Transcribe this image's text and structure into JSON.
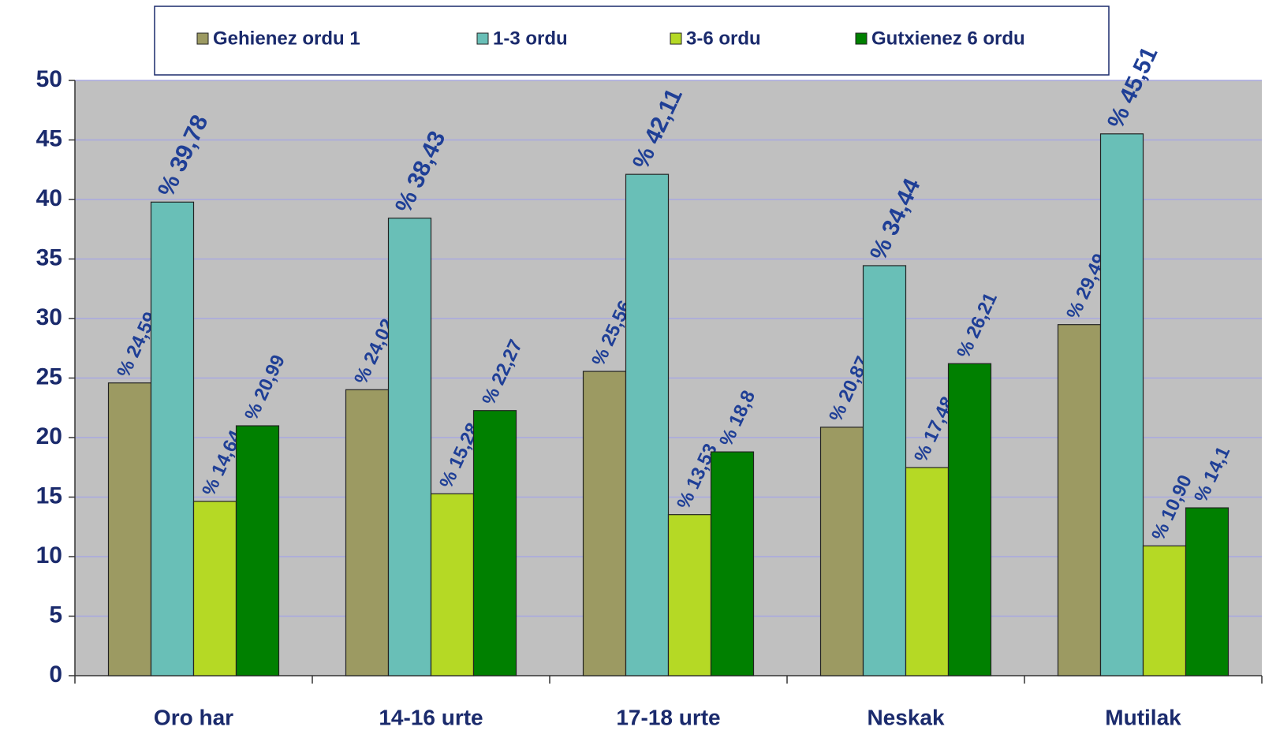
{
  "chart_data": {
    "type": "bar",
    "categories": [
      "Oro har",
      "14-16 urte",
      "17-18 urte",
      "Neskak",
      "Mutilak"
    ],
    "series": [
      {
        "name": "Gehienez ordu 1",
        "color": "#9c9a62",
        "values": [
          24.59,
          24.02,
          25.56,
          20.87,
          29.49
        ],
        "value_labels": [
          "% 24,59",
          "% 24,02",
          "% 25,56",
          "% 20,87",
          "% 29,49"
        ]
      },
      {
        "name": "1-3 ordu",
        "color": "#69bfb7",
        "values": [
          39.78,
          38.43,
          42.11,
          34.44,
          45.51
        ],
        "value_labels": [
          "% 39,78",
          "% 38,43",
          "% 42,11",
          "% 34,44",
          "% 45,51"
        ]
      },
      {
        "name": "3-6 ordu",
        "color": "#b5d925",
        "values": [
          14.64,
          15.28,
          13.53,
          17.48,
          10.9
        ],
        "value_labels": [
          "% 14,64",
          "% 15,28",
          "% 13,53",
          "% 17,48",
          "% 10,90"
        ]
      },
      {
        "name": "Gutxienez 6 ordu",
        "color": "#008000",
        "values": [
          20.99,
          22.27,
          18.8,
          26.21,
          14.1
        ],
        "value_labels": [
          "% 20,99",
          "% 22,27",
          "% 18,8",
          "% 26,21",
          "% 14,1"
        ]
      }
    ],
    "ylim": [
      0,
      50
    ],
    "yticks": [
      0,
      5,
      10,
      15,
      20,
      25,
      30,
      35,
      40,
      45,
      50
    ],
    "grid": true,
    "legend": "top"
  }
}
